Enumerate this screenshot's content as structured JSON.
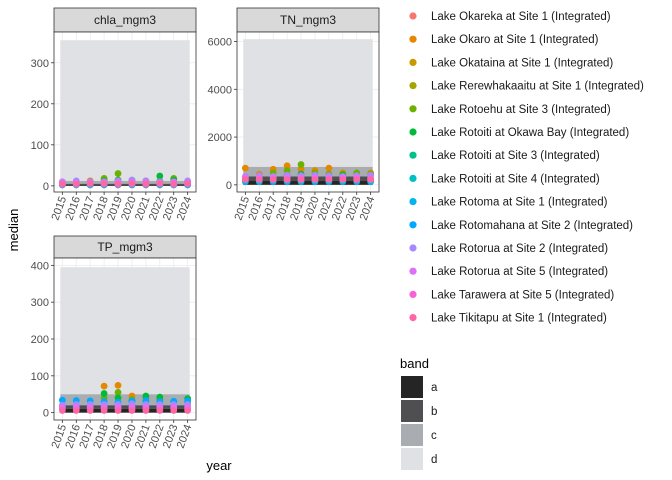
{
  "chart_data": {
    "type": "scatter",
    "xlabel": "year",
    "ylabel": "median",
    "x_ticks": [
      "2015",
      "2016",
      "2017",
      "2018",
      "2019",
      "2020",
      "2021",
      "2022",
      "2023",
      "2024"
    ],
    "band_legend": {
      "title": "band",
      "items": [
        {
          "label": "a",
          "color": "#252525"
        },
        {
          "label": "b",
          "color": "#4f4f52"
        },
        {
          "label": "c",
          "color": "#a9adb1"
        },
        {
          "label": "d",
          "color": "#dfe1e4"
        }
      ]
    },
    "series": [
      {
        "name": "Lake Okareka at Site 1 (Integrated)",
        "color": "#F8766D"
      },
      {
        "name": "Lake Okaro at Site 1 (Integrated)",
        "color": "#E58700"
      },
      {
        "name": "Lake Okataina at Site 1 (Integrated)",
        "color": "#C99800"
      },
      {
        "name": "Lake Rerewhakaaitu at Site 1 (Integrated)",
        "color": "#A3A500"
      },
      {
        "name": "Lake Rotoehu at Site 3 (Integrated)",
        "color": "#6BB100"
      },
      {
        "name": "Lake Rotoiti at Okawa Bay (Integrated)",
        "color": "#00BA38"
      },
      {
        "name": "Lake Rotoiti at Site 3 (Integrated)",
        "color": "#00C08B"
      },
      {
        "name": "Lake Rotoiti at Site 4 (Integrated)",
        "color": "#00BFC4"
      },
      {
        "name": "Lake Rotoma at Site 1 (Integrated)",
        "color": "#00B4F0"
      },
      {
        "name": "Lake Rotomahana at Site 2 (Integrated)",
        "color": "#00A9FF"
      },
      {
        "name": "Lake Rotorua at Site 2 (Integrated)",
        "color": "#A58AFF"
      },
      {
        "name": "Lake Rotorua at Site 5 (Integrated)",
        "color": "#DF70F8"
      },
      {
        "name": "Lake Tarawera at Site 5 (Integrated)",
        "color": "#FB61D7"
      },
      {
        "name": "Lake Tikitapu at Site 1 (Integrated)",
        "color": "#FF66A8"
      }
    ],
    "panels": [
      {
        "title": "chla_mgm3",
        "ylim": [
          -15,
          375
        ],
        "yticks": [
          0,
          100,
          200,
          300
        ],
        "bands": [
          [
            0,
            2
          ],
          [
            2,
            5
          ],
          [
            5,
            12
          ],
          [
            12,
            355
          ]
        ],
        "points": [
          [
            0,
            2015,
            3
          ],
          [
            0,
            2016,
            3
          ],
          [
            0,
            2017,
            3
          ],
          [
            0,
            2018,
            4
          ],
          [
            0,
            2019,
            3
          ],
          [
            0,
            2020,
            3
          ],
          [
            0,
            2021,
            3
          ],
          [
            0,
            2022,
            3
          ],
          [
            0,
            2023,
            3
          ],
          [
            0,
            2024,
            3
          ],
          [
            1,
            2015,
            9
          ],
          [
            1,
            2016,
            10
          ],
          [
            1,
            2017,
            12
          ],
          [
            1,
            2018,
            16
          ],
          [
            1,
            2019,
            14
          ],
          [
            1,
            2020,
            10
          ],
          [
            1,
            2021,
            12
          ],
          [
            1,
            2022,
            11
          ],
          [
            1,
            2023,
            10
          ],
          [
            1,
            2024,
            10
          ],
          [
            4,
            2017,
            10
          ],
          [
            4,
            2018,
            18
          ],
          [
            4,
            2019,
            30
          ],
          [
            4,
            2020,
            14
          ],
          [
            4,
            2021,
            10
          ],
          [
            4,
            2022,
            12
          ],
          [
            4,
            2023,
            18
          ],
          [
            4,
            2024,
            10
          ],
          [
            5,
            2018,
            12
          ],
          [
            5,
            2019,
            14
          ],
          [
            5,
            2022,
            24
          ],
          [
            5,
            2023,
            14
          ],
          [
            8,
            2015,
            2
          ],
          [
            8,
            2016,
            2
          ],
          [
            8,
            2017,
            2
          ],
          [
            8,
            2018,
            2
          ],
          [
            8,
            2019,
            2
          ],
          [
            8,
            2020,
            2
          ],
          [
            8,
            2021,
            2
          ],
          [
            8,
            2022,
            2
          ],
          [
            8,
            2023,
            2
          ],
          [
            8,
            2024,
            2
          ],
          [
            10,
            2015,
            10
          ],
          [
            10,
            2016,
            12
          ],
          [
            10,
            2017,
            10
          ],
          [
            10,
            2018,
            10
          ],
          [
            10,
            2019,
            12
          ],
          [
            10,
            2020,
            14
          ],
          [
            10,
            2021,
            12
          ],
          [
            10,
            2022,
            10
          ],
          [
            10,
            2023,
            10
          ],
          [
            10,
            2024,
            12
          ],
          [
            11,
            2015,
            8
          ],
          [
            11,
            2016,
            7
          ],
          [
            11,
            2017,
            8
          ],
          [
            11,
            2018,
            8
          ],
          [
            11,
            2019,
            8
          ],
          [
            11,
            2020,
            9
          ],
          [
            11,
            2021,
            8
          ],
          [
            11,
            2022,
            7
          ],
          [
            11,
            2023,
            8
          ],
          [
            11,
            2024,
            8
          ],
          [
            13,
            2015,
            4
          ],
          [
            13,
            2016,
            4
          ],
          [
            13,
            2017,
            5
          ],
          [
            13,
            2018,
            5
          ],
          [
            13,
            2019,
            4
          ],
          [
            13,
            2020,
            5
          ],
          [
            13,
            2021,
            4
          ],
          [
            13,
            2022,
            5
          ],
          [
            13,
            2023,
            4
          ],
          [
            13,
            2024,
            5
          ]
        ]
      },
      {
        "title": "TN_mgm3",
        "ylim": [
          -300,
          6400
        ],
        "yticks": [
          0,
          2000,
          4000,
          6000
        ],
        "bands": [
          [
            0,
            160
          ],
          [
            160,
            350
          ],
          [
            350,
            750
          ],
          [
            750,
            6100
          ]
        ],
        "points": [
          [
            0,
            2015,
            200
          ],
          [
            0,
            2016,
            200
          ],
          [
            0,
            2017,
            200
          ],
          [
            0,
            2018,
            200
          ],
          [
            0,
            2019,
            200
          ],
          [
            0,
            2020,
            200
          ],
          [
            0,
            2021,
            200
          ],
          [
            0,
            2022,
            200
          ],
          [
            0,
            2023,
            200
          ],
          [
            0,
            2024,
            200
          ],
          [
            1,
            2015,
            700
          ],
          [
            1,
            2016,
            450
          ],
          [
            1,
            2017,
            650
          ],
          [
            1,
            2018,
            800
          ],
          [
            1,
            2019,
            650
          ],
          [
            1,
            2020,
            600
          ],
          [
            1,
            2021,
            700
          ],
          [
            1,
            2022,
            500
          ],
          [
            1,
            2023,
            450
          ],
          [
            1,
            2024,
            500
          ],
          [
            4,
            2017,
            500
          ],
          [
            4,
            2018,
            600
          ],
          [
            4,
            2019,
            850
          ],
          [
            4,
            2020,
            500
          ],
          [
            4,
            2021,
            450
          ],
          [
            4,
            2022,
            450
          ],
          [
            4,
            2023,
            500
          ],
          [
            4,
            2024,
            450
          ],
          [
            5,
            2018,
            400
          ],
          [
            5,
            2019,
            450
          ],
          [
            5,
            2022,
            400
          ],
          [
            5,
            2023,
            350
          ],
          [
            8,
            2015,
            130
          ],
          [
            8,
            2016,
            130
          ],
          [
            8,
            2017,
            130
          ],
          [
            8,
            2018,
            130
          ],
          [
            8,
            2019,
            130
          ],
          [
            8,
            2020,
            130
          ],
          [
            8,
            2021,
            130
          ],
          [
            8,
            2022,
            130
          ],
          [
            8,
            2023,
            130
          ],
          [
            8,
            2024,
            130
          ],
          [
            10,
            2015,
            350
          ],
          [
            10,
            2016,
            380
          ],
          [
            10,
            2017,
            350
          ],
          [
            10,
            2018,
            400
          ],
          [
            10,
            2019,
            380
          ],
          [
            10,
            2020,
            400
          ],
          [
            10,
            2021,
            380
          ],
          [
            10,
            2022,
            350
          ],
          [
            10,
            2023,
            380
          ],
          [
            10,
            2024,
            400
          ],
          [
            11,
            2015,
            300
          ],
          [
            11,
            2016,
            280
          ],
          [
            11,
            2017,
            300
          ],
          [
            11,
            2018,
            300
          ],
          [
            11,
            2019,
            300
          ],
          [
            11,
            2020,
            300
          ],
          [
            11,
            2021,
            280
          ],
          [
            11,
            2022,
            300
          ],
          [
            11,
            2023,
            300
          ],
          [
            11,
            2024,
            280
          ],
          [
            13,
            2015,
            220
          ],
          [
            13,
            2016,
            220
          ],
          [
            13,
            2017,
            220
          ],
          [
            13,
            2018,
            220
          ],
          [
            13,
            2019,
            220
          ],
          [
            13,
            2020,
            220
          ],
          [
            13,
            2021,
            220
          ],
          [
            13,
            2022,
            220
          ],
          [
            13,
            2023,
            220
          ],
          [
            13,
            2024,
            220
          ]
        ]
      },
      {
        "title": "TP_mgm3",
        "ylim": [
          -20,
          420
        ],
        "yticks": [
          0,
          100,
          200,
          300,
          400
        ],
        "bands": [
          [
            0,
            10
          ],
          [
            10,
            20
          ],
          [
            20,
            50
          ],
          [
            50,
            395
          ]
        ],
        "points": [
          [
            0,
            2015,
            10
          ],
          [
            0,
            2016,
            10
          ],
          [
            0,
            2017,
            10
          ],
          [
            0,
            2018,
            10
          ],
          [
            0,
            2019,
            10
          ],
          [
            0,
            2020,
            10
          ],
          [
            0,
            2021,
            10
          ],
          [
            0,
            2022,
            10
          ],
          [
            0,
            2023,
            10
          ],
          [
            0,
            2024,
            10
          ],
          [
            1,
            2018,
            72
          ],
          [
            1,
            2019,
            74
          ],
          [
            1,
            2020,
            45
          ],
          [
            1,
            2021,
            40
          ],
          [
            1,
            2022,
            35
          ],
          [
            1,
            2023,
            30
          ],
          [
            1,
            2024,
            30
          ],
          [
            4,
            2018,
            40
          ],
          [
            4,
            2019,
            55
          ],
          [
            4,
            2020,
            35
          ],
          [
            4,
            2021,
            30
          ],
          [
            4,
            2022,
            35
          ],
          [
            4,
            2023,
            30
          ],
          [
            4,
            2024,
            28
          ],
          [
            5,
            2018,
            52
          ],
          [
            5,
            2019,
            40
          ],
          [
            5,
            2020,
            30
          ],
          [
            5,
            2021,
            45
          ],
          [
            5,
            2022,
            42
          ],
          [
            5,
            2023,
            30
          ],
          [
            5,
            2024,
            38
          ],
          [
            9,
            2015,
            34
          ],
          [
            9,
            2016,
            33
          ],
          [
            9,
            2017,
            32
          ],
          [
            9,
            2018,
            30
          ],
          [
            9,
            2019,
            28
          ],
          [
            9,
            2020,
            32
          ],
          [
            9,
            2021,
            33
          ],
          [
            9,
            2022,
            30
          ],
          [
            9,
            2023,
            31
          ],
          [
            9,
            2024,
            32
          ],
          [
            10,
            2015,
            20
          ],
          [
            10,
            2016,
            22
          ],
          [
            10,
            2017,
            22
          ],
          [
            10,
            2018,
            22
          ],
          [
            10,
            2019,
            22
          ],
          [
            10,
            2020,
            24
          ],
          [
            10,
            2021,
            22
          ],
          [
            10,
            2022,
            22
          ],
          [
            10,
            2023,
            22
          ],
          [
            10,
            2024,
            22
          ],
          [
            11,
            2015,
            15
          ],
          [
            11,
            2016,
            15
          ],
          [
            11,
            2017,
            15
          ],
          [
            11,
            2018,
            15
          ],
          [
            11,
            2019,
            15
          ],
          [
            11,
            2020,
            15
          ],
          [
            11,
            2021,
            15
          ],
          [
            11,
            2022,
            15
          ],
          [
            11,
            2023,
            15
          ],
          [
            11,
            2024,
            15
          ],
          [
            13,
            2015,
            6
          ],
          [
            13,
            2016,
            6
          ],
          [
            13,
            2017,
            6
          ],
          [
            13,
            2018,
            6
          ],
          [
            13,
            2019,
            6
          ],
          [
            13,
            2020,
            6
          ],
          [
            13,
            2021,
            6
          ],
          [
            13,
            2022,
            6
          ],
          [
            13,
            2023,
            6
          ],
          [
            13,
            2024,
            6
          ]
        ]
      }
    ]
  }
}
